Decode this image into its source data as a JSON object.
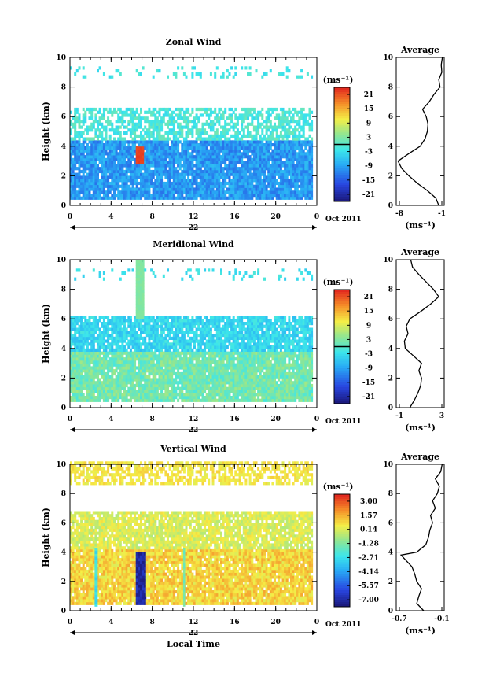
{
  "figure": {
    "xlabel": "Local Time",
    "date_label": "Oct 2011",
    "day_label": "22"
  },
  "chart_data": [
    {
      "type": "heatmap",
      "title": "Zonal Wind",
      "ylabel": "Height (km)",
      "xticks": [
        "0",
        "4",
        "8",
        "12",
        "16",
        "20",
        "0"
      ],
      "xlim": [
        0,
        24
      ],
      "yticks": [
        "0",
        "2",
        "4",
        "6",
        "8",
        "10"
      ],
      "ylim": [
        0,
        10
      ],
      "colorbar": {
        "unit": "(ms⁻¹)",
        "ticks": [
          "21",
          "15",
          "9",
          "3",
          "-3",
          "-9",
          "-15",
          "-21"
        ],
        "range": [
          -24,
          24
        ],
        "contour_tick": "0"
      },
      "field": {
        "low_layer": {
          "height_km": [
            0.3,
            4.4
          ],
          "value": -10
        },
        "mid_layer": {
          "height_km": [
            4.4,
            6.6
          ],
          "value": -1
        },
        "upper_blobs": {
          "height_km": [
            8.5,
            9.3
          ],
          "value": -2
        },
        "core": {
          "time_h": [
            6.4,
            7.1
          ],
          "height_km": [
            2.8,
            4.0
          ],
          "value": 22
        }
      },
      "average": {
        "title": "Average",
        "xlabel": "(ms⁻¹)",
        "xticks": [
          "-8",
          "-1"
        ],
        "xlim": [
          -8.5,
          -0.5
        ],
        "yticks": [
          "0",
          "2",
          "4",
          "6",
          "8",
          "10"
        ],
        "profile": {
          "height_km": [
            0.0,
            0.5,
            1.0,
            1.5,
            2.0,
            2.5,
            3.0,
            3.5,
            4.0,
            4.5,
            5.0,
            5.5,
            6.0,
            6.5,
            7.0,
            7.5,
            8.0,
            8.5,
            9.0,
            9.5,
            10.0
          ],
          "value": [
            -1.4,
            -1.9,
            -3.3,
            -5.0,
            -6.4,
            -7.6,
            -8.2,
            -6.4,
            -4.5,
            -3.7,
            -3.3,
            -3.2,
            -3.5,
            -4.1,
            -3.0,
            -2.2,
            -1.2,
            -1.4,
            -0.9,
            -1.0,
            -0.8
          ]
        }
      }
    },
    {
      "type": "heatmap",
      "title": "Meridional Wind",
      "ylabel": "Height (km)",
      "xticks": [
        "0",
        "4",
        "8",
        "12",
        "16",
        "20",
        "0"
      ],
      "xlim": [
        0,
        24
      ],
      "yticks": [
        "0",
        "2",
        "4",
        "6",
        "8",
        "10"
      ],
      "ylim": [
        0,
        10
      ],
      "colorbar": {
        "unit": "(ms⁻¹)",
        "ticks": [
          "21",
          "15",
          "9",
          "3",
          "-3",
          "-9",
          "-15",
          "-21"
        ],
        "range": [
          -24,
          24
        ],
        "contour_tick": "0"
      },
      "field": {
        "low_layer": {
          "height_km": [
            0.3,
            3.8
          ],
          "value": 2
        },
        "mid_layer": {
          "height_km": [
            3.8,
            6.2
          ],
          "value": -4
        },
        "upper_blobs": {
          "height_km": [
            8.5,
            9.3
          ],
          "value": -3
        },
        "core": {
          "time_h": [
            6.4,
            7.1
          ],
          "height_km": [
            6.0,
            9.8
          ],
          "value": 3
        }
      },
      "average": {
        "title": "Average",
        "xlabel": "(ms⁻¹)",
        "xticks": [
          "-1",
          "3"
        ],
        "xlim": [
          -1.5,
          3.8
        ],
        "yticks": [
          "0",
          "2",
          "4",
          "6",
          "8",
          "10"
        ],
        "profile": {
          "height_km": [
            0.0,
            0.5,
            1.0,
            1.5,
            2.0,
            2.5,
            3.0,
            3.5,
            4.0,
            4.5,
            5.0,
            5.5,
            6.0,
            6.5,
            7.0,
            7.5,
            8.0,
            8.5,
            9.0,
            9.5,
            10.0
          ],
          "value": [
            0.0,
            0.5,
            0.9,
            1.2,
            1.3,
            1.0,
            1.3,
            0.4,
            -0.5,
            -0.6,
            -0.2,
            -0.4,
            0.0,
            1.2,
            2.3,
            3.2,
            2.6,
            1.8,
            1.0,
            0.3,
            0.1
          ]
        }
      }
    },
    {
      "type": "heatmap",
      "title": "Vertical Wind",
      "ylabel": "Height (km)",
      "xticks": [
        "0",
        "4",
        "8",
        "12",
        "16",
        "20",
        "0"
      ],
      "xlim": [
        0,
        24
      ],
      "yticks": [
        "0",
        "2",
        "4",
        "6",
        "8",
        "10"
      ],
      "ylim": [
        0,
        10
      ],
      "colorbar": {
        "unit": "(ms⁻¹)",
        "ticks": [
          "3.00",
          "1.57",
          "0.14",
          "-1.28",
          "-2.71",
          "-4.14",
          "-5.57",
          "-7.00"
        ],
        "range": [
          -7.7,
          3.7
        ]
      },
      "field": {
        "low_layer": {
          "height_km": [
            0.3,
            4.2
          ],
          "value": 0.9
        },
        "mid_layer": {
          "height_km": [
            4.2,
            6.7
          ],
          "value": 0.1
        },
        "upper_blobs": {
          "height_km": [
            8.5,
            10.0
          ],
          "value": 0.6
        },
        "core": {
          "time_h": [
            6.3,
            7.3
          ],
          "height_km": [
            0.3,
            4.0
          ],
          "value": -7.0
        }
      },
      "average": {
        "title": "Average",
        "xlabel": "(ms⁻¹)",
        "xticks": [
          "-0.7",
          "-0.1"
        ],
        "xlim": [
          -0.75,
          -0.05
        ],
        "yticks": [
          "0",
          "2",
          "4",
          "6",
          "8",
          "10"
        ],
        "profile": {
          "height_km": [
            0.0,
            0.5,
            1.0,
            1.5,
            2.0,
            2.5,
            3.0,
            3.5,
            3.8,
            4.0,
            4.5,
            5.0,
            5.5,
            6.0,
            6.5,
            7.0,
            7.5,
            8.0,
            8.5,
            9.0,
            9.5,
            10.0
          ],
          "value": [
            -0.35,
            -0.45,
            -0.42,
            -0.38,
            -0.45,
            -0.48,
            -0.52,
            -0.62,
            -0.68,
            -0.45,
            -0.32,
            -0.28,
            -0.26,
            -0.22,
            -0.25,
            -0.18,
            -0.22,
            -0.15,
            -0.12,
            -0.18,
            -0.1,
            -0.08
          ]
        }
      }
    }
  ]
}
